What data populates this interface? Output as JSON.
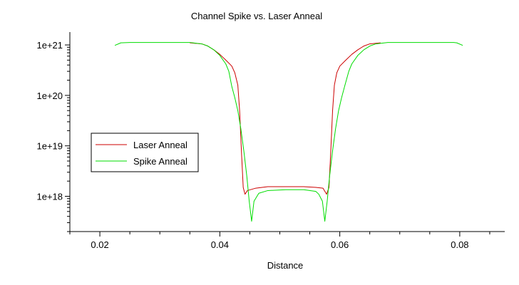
{
  "chart_data": {
    "type": "line",
    "title": "Channel Spike vs. Laser Anneal",
    "xlabel": "Distance",
    "ylabel": "",
    "y_scale": "log",
    "xlim": [
      0.015,
      0.0875
    ],
    "ylim": [
      2e+17,
      1.8e+21
    ],
    "x_ticks": [
      {
        "value": 0.02,
        "label": "0.02"
      },
      {
        "value": 0.04,
        "label": "0.04"
      },
      {
        "value": 0.06,
        "label": "0.06"
      },
      {
        "value": 0.08,
        "label": "0.08"
      }
    ],
    "y_ticks": [
      {
        "value": 1e+18,
        "label": "1e+18"
      },
      {
        "value": 1e+19,
        "label": "1e+19"
      },
      {
        "value": 1e+20,
        "label": "1e+20"
      },
      {
        "value": 1e+21,
        "label": "1e+21"
      }
    ],
    "grid": false,
    "legend_position": "center-left",
    "series": [
      {
        "name": "Laser Anneal",
        "color": "#cc0000",
        "points": [
          [
            0.035,
            1.1e+21
          ],
          [
            0.037,
            1.05e+21
          ],
          [
            0.038,
            9.5e+20
          ],
          [
            0.039,
            8e+20
          ],
          [
            0.04,
            6.5e+20
          ],
          [
            0.041,
            5e+20
          ],
          [
            0.042,
            3.8e+20
          ],
          [
            0.0425,
            2.8e+20
          ],
          [
            0.043,
            1.6e+20
          ],
          [
            0.0433,
            5e+19
          ],
          [
            0.0436,
            8e+18
          ],
          [
            0.0439,
            1.5e+18
          ],
          [
            0.0442,
            1.1e+18
          ],
          [
            0.0446,
            1.3e+18
          ],
          [
            0.046,
            1.45e+18
          ],
          [
            0.048,
            1.55e+18
          ],
          [
            0.051,
            1.55e+18
          ],
          [
            0.054,
            1.55e+18
          ],
          [
            0.056,
            1.5e+18
          ],
          [
            0.0572,
            1.45e+18
          ],
          [
            0.0578,
            1.1e+18
          ],
          [
            0.0582,
            1.5e+18
          ],
          [
            0.0585,
            8e+18
          ],
          [
            0.0588,
            5e+19
          ],
          [
            0.0591,
            1.6e+20
          ],
          [
            0.0595,
            2.8e+20
          ],
          [
            0.06,
            3.8e+20
          ],
          [
            0.061,
            5e+20
          ],
          [
            0.062,
            6.5e+20
          ],
          [
            0.063,
            8e+20
          ],
          [
            0.064,
            9.5e+20
          ],
          [
            0.065,
            1.05e+21
          ],
          [
            0.0668,
            1.1e+21
          ]
        ]
      },
      {
        "name": "Spike Anneal",
        "color": "#00dd00",
        "points": [
          [
            0.0225,
            9.8e+20
          ],
          [
            0.0235,
            1.1e+21
          ],
          [
            0.025,
            1.12e+21
          ],
          [
            0.03,
            1.12e+21
          ],
          [
            0.035,
            1.12e+21
          ],
          [
            0.037,
            1.05e+21
          ],
          [
            0.038,
            9.5e+20
          ],
          [
            0.039,
            8e+20
          ],
          [
            0.04,
            6.2e+20
          ],
          [
            0.041,
            4.2e+20
          ],
          [
            0.0415,
            3e+20
          ],
          [
            0.042,
            1.5e+20
          ],
          [
            0.0425,
            9e+19
          ],
          [
            0.043,
            5e+19
          ],
          [
            0.0435,
            2.2e+19
          ],
          [
            0.044,
            8e+18
          ],
          [
            0.0445,
            2.5e+18
          ],
          [
            0.0449,
            8e+17
          ],
          [
            0.0453,
            3.2e+17
          ],
          [
            0.0457,
            8e+17
          ],
          [
            0.0465,
            1.15e+18
          ],
          [
            0.048,
            1.3e+18
          ],
          [
            0.051,
            1.35e+18
          ],
          [
            0.054,
            1.35e+18
          ],
          [
            0.056,
            1.25e+18
          ],
          [
            0.0565,
            1.1e+18
          ],
          [
            0.0571,
            8e+17
          ],
          [
            0.0575,
            3.2e+17
          ],
          [
            0.0579,
            8e+17
          ],
          [
            0.0583,
            2.5e+18
          ],
          [
            0.0588,
            8e+18
          ],
          [
            0.0593,
            2.2e+19
          ],
          [
            0.0598,
            5e+19
          ],
          [
            0.0603,
            9e+19
          ],
          [
            0.0608,
            1.5e+20
          ],
          [
            0.0615,
            3e+20
          ],
          [
            0.062,
            4.2e+20
          ],
          [
            0.063,
            6.2e+20
          ],
          [
            0.064,
            8e+20
          ],
          [
            0.065,
            9.5e+20
          ],
          [
            0.066,
            1.05e+21
          ],
          [
            0.068,
            1.12e+21
          ],
          [
            0.075,
            1.12e+21
          ],
          [
            0.079,
            1.12e+21
          ],
          [
            0.0795,
            1.1e+21
          ],
          [
            0.0805,
            9.8e+20
          ]
        ]
      }
    ]
  }
}
